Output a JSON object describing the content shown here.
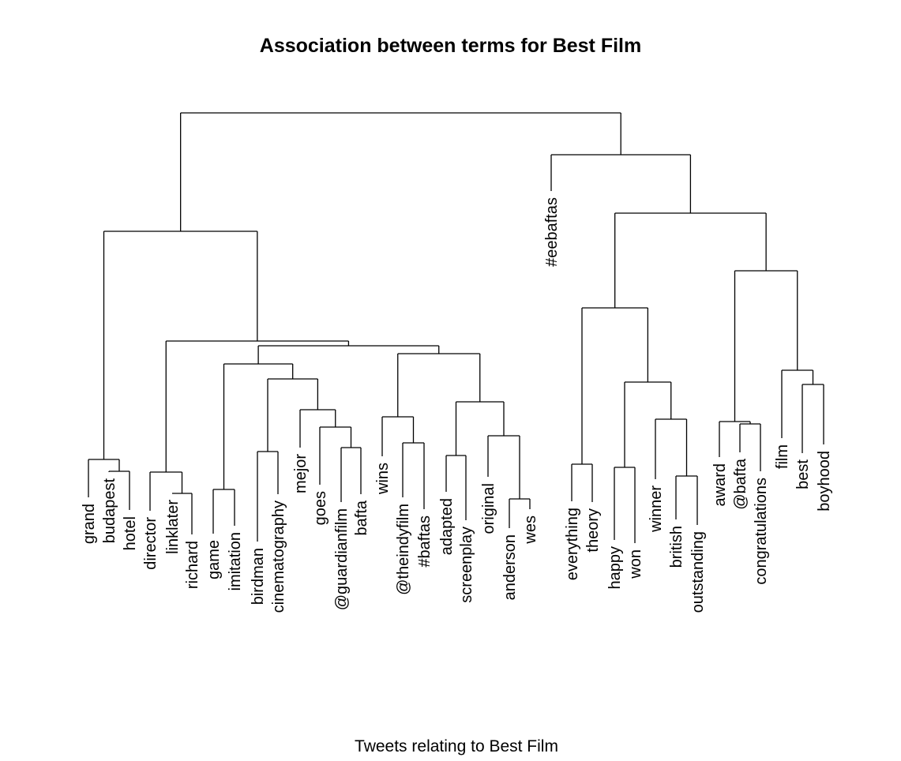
{
  "chart_data": {
    "type": "dendrogram",
    "title": "Association between terms for Best Film",
    "xlabel": "Tweets relating to Best Film",
    "leaves": [
      "grand",
      "budapest",
      "hotel",
      "director",
      "linklater",
      "richard",
      "game",
      "imitation",
      "birdman",
      "cinematography",
      "mejor",
      "goes",
      "@guardianfilm",
      "bafta",
      "wins",
      "@theindyfilm",
      "#baftas",
      "adapted",
      "screenplay",
      "original",
      "anderson",
      "wes",
      "#eebaftas",
      "everything",
      "theory",
      "happy",
      "won",
      "winner",
      "british",
      "outstanding",
      "award",
      "@bafta",
      "congratulations",
      "film",
      "best",
      "boyhood"
    ],
    "merges": [
      [
        "budapest",
        "hotel"
      ],
      [
        "grand",
        "budapest+hotel"
      ],
      [
        "linklater",
        "richard"
      ],
      [
        "director",
        "linklater+richard"
      ],
      [
        "game",
        "imitation"
      ],
      [
        "birdman",
        "cinematography"
      ],
      [
        "@guardianfilm",
        "bafta"
      ],
      [
        "goes",
        "@guardianfilm+bafta"
      ],
      [
        "mejor",
        "goes+@guardianfilm+bafta"
      ],
      [
        "birdman+cinematography",
        "mejor+goes+@guardianfilm+bafta"
      ],
      [
        "game+imitation",
        "birdman+cinematography+mejor+goes+@guardianfilm+bafta"
      ],
      [
        "@theindyfilm",
        "#baftas"
      ],
      [
        "wins",
        "@theindyfilm+#baftas"
      ],
      [
        "adapted",
        "screenplay"
      ],
      [
        "anderson",
        "wes"
      ],
      [
        "original",
        "anderson+wes"
      ],
      [
        "adapted+screenplay",
        "original+anderson+wes"
      ],
      [
        "wins+@theindyfilm+#baftas",
        "adapted+screenplay+original+anderson+wes"
      ],
      [
        "game..bafta",
        "wins..wes"
      ],
      [
        "director..richard",
        "game..wes"
      ],
      [
        "grand..hotel",
        "director..wes"
      ],
      [
        "everything",
        "theory"
      ],
      [
        "happy",
        "won"
      ],
      [
        "british",
        "outstanding"
      ],
      [
        "winner",
        "british+outstanding"
      ],
      [
        "happy+won",
        "winner+british+outstanding"
      ],
      [
        "everything+theory",
        "happy..outstanding"
      ],
      [
        "@bafta",
        "congratulations"
      ],
      [
        "award",
        "@bafta+congratulations"
      ],
      [
        "best",
        "boyhood"
      ],
      [
        "film",
        "best+boyhood"
      ],
      [
        "award..congratulations",
        "film+best+boyhood"
      ],
      [
        "everything..outstanding",
        "award..boyhood"
      ],
      [
        "#eebaftas",
        "everything..boyhood"
      ],
      [
        "grand..wes",
        "#eebaftas..boyhood"
      ]
    ]
  }
}
